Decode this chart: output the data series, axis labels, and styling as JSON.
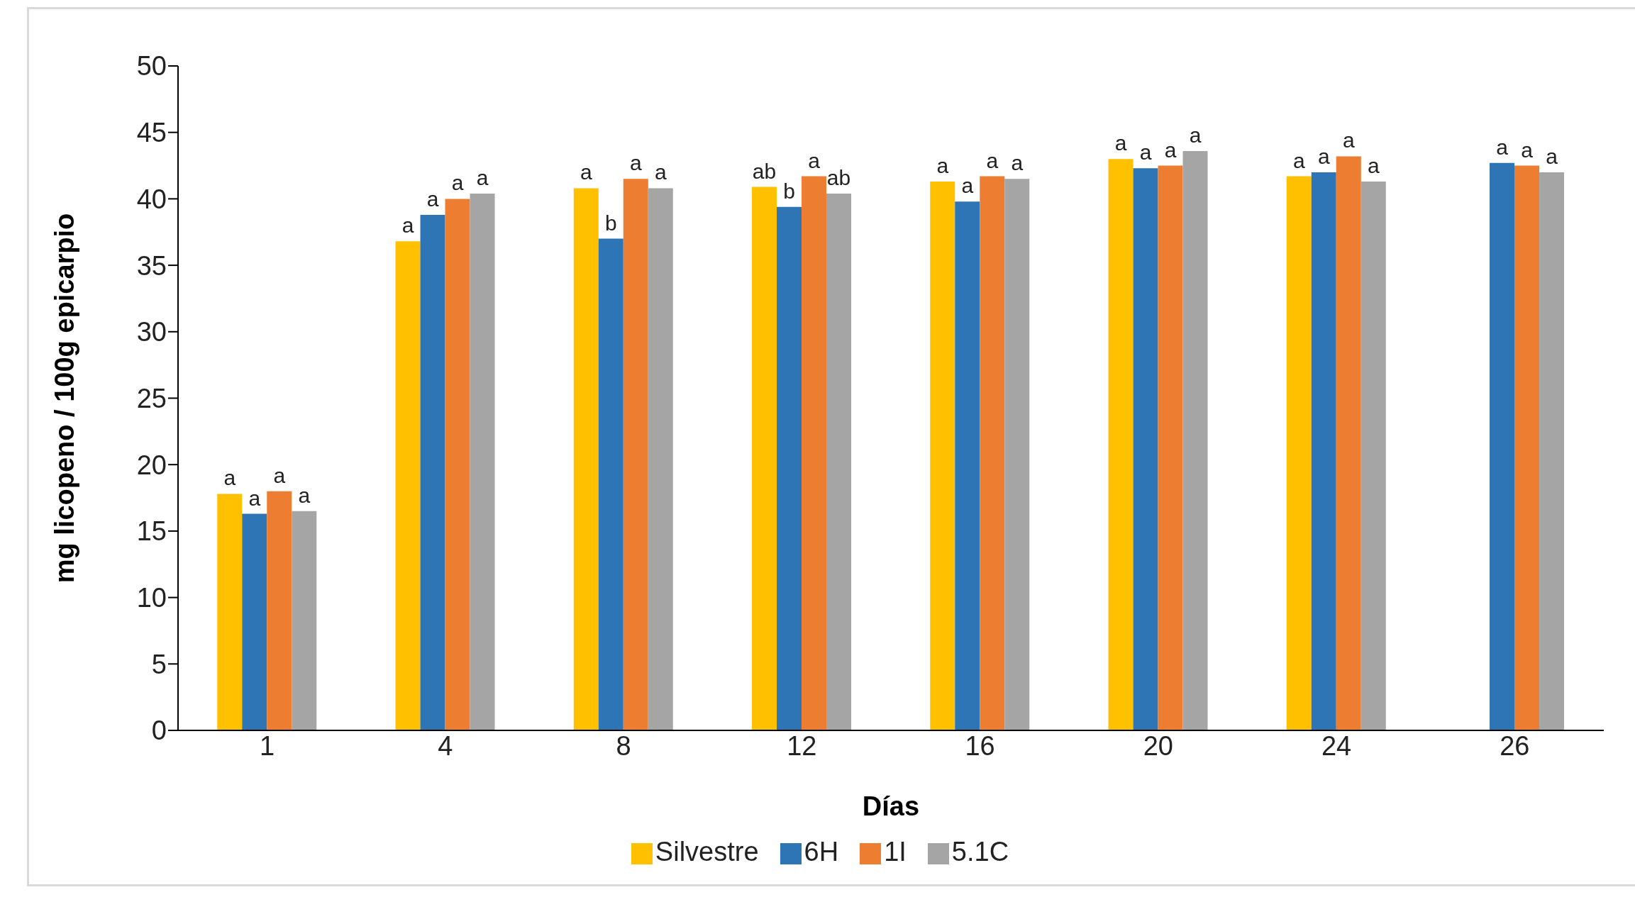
{
  "chart_data": {
    "type": "bar",
    "xlabel": "Días",
    "ylabel": "mg licopeno / 100g epicarpio",
    "categories": [
      "1",
      "4",
      "8",
      "12",
      "16",
      "20",
      "24",
      "26"
    ],
    "series": [
      {
        "name": "Silvestre",
        "color": "#ffc000",
        "values": [
          17.8,
          36.8,
          40.8,
          40.9,
          41.3,
          43.0,
          41.7,
          null
        ],
        "value_labels": [
          "a",
          "a",
          "a",
          "ab",
          "a",
          "a",
          "a",
          null
        ]
      },
      {
        "name": "6H",
        "color": "#2e75b6",
        "values": [
          16.3,
          38.8,
          37.0,
          39.4,
          39.8,
          42.3,
          42.0,
          42.7
        ],
        "value_labels": [
          "a",
          "a",
          "b",
          "b",
          "a",
          "a",
          "a",
          "a"
        ]
      },
      {
        "name": "1I",
        "color": "#ed7d31",
        "values": [
          18.0,
          40.0,
          41.5,
          41.7,
          41.7,
          42.5,
          43.2,
          42.5
        ],
        "value_labels": [
          "a",
          "a",
          "a",
          "a",
          "a",
          "a",
          "a",
          "a"
        ]
      },
      {
        "name": "5.1C",
        "color": "#a5a5a5",
        "values": [
          16.5,
          40.4,
          40.8,
          40.4,
          41.5,
          43.6,
          41.3,
          42.0
        ],
        "value_labels": [
          "a",
          "a",
          "a",
          "ab",
          "a",
          "a",
          "a",
          "a"
        ]
      }
    ],
    "ylim": [
      0,
      50
    ],
    "yticks": [
      0,
      5,
      10,
      15,
      20,
      25,
      30,
      35,
      40,
      45,
      50
    ],
    "grid": false,
    "legend": "bottom"
  }
}
